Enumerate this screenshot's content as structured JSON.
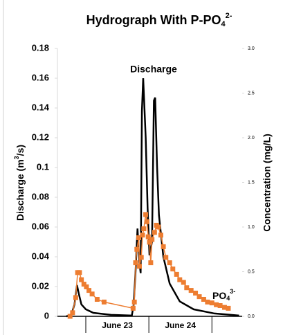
{
  "chart_data": {
    "type": "line",
    "title": "Hydrograph With P-PO",
    "title_sub": "4",
    "title_sup": "2-",
    "y_label": "Discharge (m",
    "y_label_sup": "3",
    "y_label_end": "/s)",
    "y2_label": "Concentration (mg/L)",
    "categories": [
      "June 23",
      "June 24"
    ],
    "category_bounds": [
      1,
      2,
      3
    ],
    "xlim": [
      0.55,
      3.48
    ],
    "ylim": [
      0,
      0.18
    ],
    "yticks": [
      0,
      0.02,
      0.04,
      0.06,
      0.08,
      0.1,
      0.12,
      0.14,
      0.16,
      0.18
    ],
    "y2lim": [
      0,
      3
    ],
    "y2ticks": [
      {
        "value": 0,
        "label": "0.0"
      },
      {
        "value": 0.5,
        "label": "0.5"
      },
      {
        "value": 1,
        "label": "1.0"
      },
      {
        "value": 1.5,
        "label": "1.5"
      },
      {
        "value": 2,
        "label": "2.0"
      },
      {
        "value": 2.5,
        "label": "2.5"
      },
      {
        "value": 3,
        "label": "3.0"
      }
    ],
    "series": [
      {
        "name": "Discharge",
        "color": "#000000",
        "x": [
          0.69,
          0.77,
          0.82,
          0.86,
          0.89,
          0.93,
          1.0,
          1.12,
          1.4,
          1.73,
          1.76,
          1.79,
          1.82,
          1.85,
          1.87,
          1.89,
          1.91,
          1.95,
          1.98,
          2.01,
          2.05,
          2.08,
          2.1,
          2.13,
          2.16,
          2.23,
          2.33,
          2.49,
          2.71,
          3.04,
          3.43
        ],
        "values": [
          0,
          0.0009,
          0.0079,
          0.021,
          0.015,
          0.008,
          0.0047,
          0.0023,
          0.001,
          0.0005,
          0.008,
          0.031,
          0.059,
          0.036,
          0.029,
          0.138,
          0.16,
          0.12,
          0.073,
          0.041,
          0.05,
          0.145,
          0.147,
          0.101,
          0.068,
          0.04,
          0.022,
          0.01,
          0.0047,
          0.0019,
          0.0005
        ]
      },
      {
        "name": "PO",
        "name_sub": "4",
        "name_sup": "3-",
        "color": "#ed7d31",
        "axis": "y2",
        "x": [
          0.75,
          0.79,
          0.84,
          0.87,
          0.9,
          0.93,
          0.97,
          1.01,
          1.05,
          1.1,
          1.18,
          1.29,
          1.75,
          1.77,
          1.79,
          1.81,
          1.84,
          1.85,
          1.88,
          1.9,
          1.92,
          1.95,
          1.97,
          1.99,
          2.01,
          2.03,
          2.05,
          2.09,
          2.12,
          2.15,
          2.19,
          2.23,
          2.27,
          2.33,
          2.38,
          2.44,
          2.49,
          2.55,
          2.6,
          2.67,
          2.74,
          2.8,
          2.87,
          2.93,
          3.0,
          3.07,
          3.13,
          3.2,
          3.26
        ],
        "values": [
          0,
          0.04,
          0.21,
          0.49,
          0.49,
          0.41,
          0.36,
          0.33,
          0.29,
          0.25,
          0.19,
          0.16,
          0.09,
          0.16,
          0.6,
          0.75,
          0.88,
          0.56,
          0.66,
          0.91,
          0.98,
          1.14,
          1.06,
          0.89,
          0.83,
          0.6,
          0.86,
          0.94,
          1.02,
          1.0,
          0.91,
          0.78,
          0.66,
          0.6,
          0.53,
          0.47,
          0.41,
          0.38,
          0.32,
          0.29,
          0.26,
          0.22,
          0.19,
          0.16,
          0.15,
          0.13,
          0.12,
          0.1,
          0.09
        ]
      }
    ]
  }
}
